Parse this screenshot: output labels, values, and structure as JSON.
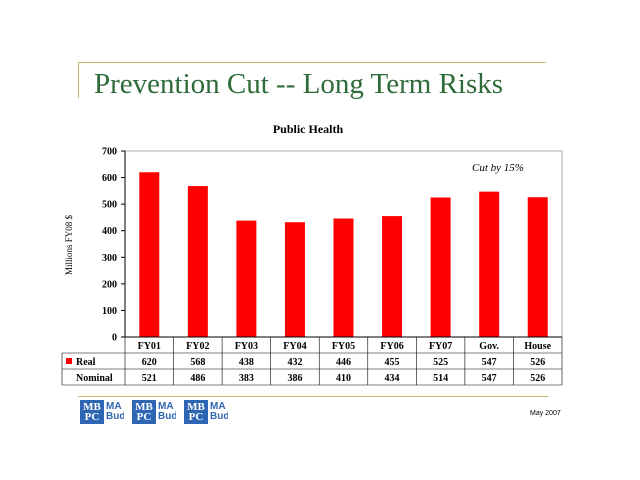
{
  "slide": {
    "title": "Prevention Cut  -- Long Term Risks",
    "date": "May 2007"
  },
  "footer_logos": [
    {
      "mark": "MB PC",
      "text": "MA Bud"
    },
    {
      "mark": "MB PC",
      "text": "MA Bud"
    },
    {
      "mark": "MB PC",
      "text": "MA Bud"
    }
  ],
  "chart_data": {
    "type": "bar",
    "title": "Public Health",
    "ylabel": "Millions FY08 $",
    "xlabel": "",
    "annotation": "Cut by 15%",
    "ylim": [
      0,
      700
    ],
    "yticks": [
      0,
      100,
      200,
      300,
      400,
      500,
      600,
      700
    ],
    "categories": [
      "FY01",
      "FY02",
      "FY03",
      "FY04",
      "FY05",
      "FY06",
      "FY07",
      "Gov.",
      "House"
    ],
    "series": [
      {
        "name": "Real",
        "values": [
          620,
          568,
          438,
          432,
          446,
          455,
          525,
          547,
          526
        ],
        "color": "#ff0000",
        "plotted": true
      },
      {
        "name": "Nominal",
        "values": [
          521,
          486,
          383,
          386,
          410,
          434,
          514,
          547,
          526
        ],
        "plotted": false
      }
    ],
    "grid": false,
    "legend": "data-table"
  }
}
